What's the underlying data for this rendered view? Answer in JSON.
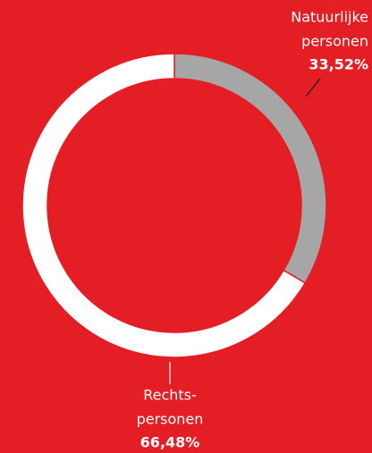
{
  "chart_data": {
    "type": "donut",
    "categories": [
      [
        "Natuurlijke",
        "personen"
      ],
      [
        "Rechts-",
        "personen"
      ]
    ],
    "values": [
      33.52,
      66.48
    ],
    "value_labels": [
      "33,52%",
      "66,48%"
    ],
    "colors": [
      "#a6a6a6",
      "#ffffff"
    ]
  }
}
